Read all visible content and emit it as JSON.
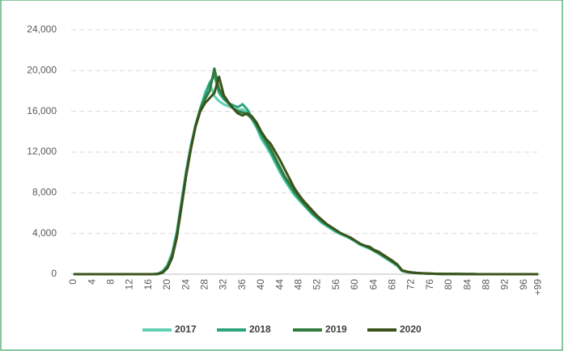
{
  "chart_data": {
    "type": "line",
    "categories": [
      "0",
      null,
      null,
      null,
      "4",
      null,
      null,
      null,
      "8",
      null,
      null,
      null,
      "12",
      null,
      null,
      null,
      "16",
      null,
      null,
      null,
      "20",
      null,
      null,
      null,
      "24",
      null,
      null,
      null,
      "28",
      null,
      null,
      null,
      "32",
      null,
      null,
      null,
      "36",
      null,
      null,
      null,
      "40",
      null,
      null,
      null,
      "44",
      null,
      null,
      null,
      "48",
      null,
      null,
      null,
      "52",
      null,
      null,
      null,
      "56",
      null,
      null,
      null,
      "60",
      null,
      null,
      null,
      "64",
      null,
      null,
      null,
      "68",
      null,
      null,
      null,
      "72",
      null,
      null,
      null,
      "76",
      null,
      null,
      null,
      "80",
      null,
      null,
      null,
      "84",
      null,
      null,
      null,
      "88",
      null,
      null,
      null,
      "92",
      null,
      null,
      null,
      "96",
      null,
      null,
      "+99"
    ],
    "series": [
      {
        "name": "2017",
        "color": "#5fd0b4",
        "values": [
          0,
          0,
          0,
          0,
          0,
          0,
          0,
          0,
          0,
          0,
          0,
          0,
          0,
          0,
          0,
          0,
          0,
          0,
          50,
          300,
          900,
          2100,
          4200,
          7200,
          10200,
          12700,
          14700,
          16300,
          17800,
          18800,
          17500,
          17000,
          16700,
          16500,
          16300,
          16100,
          16200,
          15900,
          15200,
          14400,
          13300,
          12600,
          11800,
          10900,
          10000,
          9200,
          8500,
          7800,
          7300,
          6800,
          6300,
          5800,
          5400,
          5000,
          4700,
          4400,
          4100,
          3900,
          3700,
          3500,
          3200,
          2900,
          2700,
          2500,
          2300,
          2000,
          1700,
          1400,
          1100,
          800,
          300,
          200,
          150,
          100,
          80,
          60,
          40,
          30,
          25,
          20,
          20,
          15,
          15,
          10,
          10,
          10,
          5,
          5,
          5,
          5,
          0,
          0,
          0,
          0,
          0,
          0,
          0,
          0,
          0,
          0
        ]
      },
      {
        "name": "2018",
        "color": "#2aa57c",
        "values": [
          0,
          0,
          0,
          0,
          0,
          0,
          0,
          0,
          0,
          0,
          0,
          0,
          0,
          0,
          0,
          0,
          0,
          0,
          40,
          250,
          800,
          1900,
          4000,
          7000,
          10000,
          12500,
          14600,
          16200,
          17500,
          18800,
          19500,
          17800,
          17200,
          16800,
          16600,
          16400,
          16700,
          16200,
          15400,
          14500,
          13600,
          12800,
          12000,
          11100,
          10200,
          9400,
          8700,
          8000,
          7400,
          6900,
          6400,
          5900,
          5500,
          5100,
          4800,
          4500,
          4200,
          4000,
          3800,
          3500,
          3300,
          3000,
          2800,
          2600,
          2300,
          2100,
          1800,
          1500,
          1200,
          900,
          350,
          220,
          160,
          110,
          90,
          70,
          50,
          35,
          30,
          25,
          20,
          15,
          15,
          10,
          10,
          10,
          5,
          5,
          5,
          5,
          0,
          0,
          0,
          0,
          0,
          0,
          0,
          0,
          0,
          0
        ]
      },
      {
        "name": "2019",
        "color": "#2f7a3c",
        "values": [
          0,
          0,
          0,
          0,
          0,
          0,
          0,
          0,
          0,
          0,
          0,
          0,
          0,
          0,
          0,
          0,
          0,
          0,
          30,
          200,
          700,
          1800,
          3800,
          6800,
          9800,
          12400,
          14600,
          16200,
          17200,
          18000,
          20200,
          18200,
          17400,
          16800,
          16300,
          16000,
          15900,
          15700,
          15300,
          14700,
          13900,
          13100,
          12300,
          11400,
          10500,
          9600,
          8900,
          8200,
          7600,
          7000,
          6500,
          6000,
          5600,
          5200,
          4900,
          4600,
          4300,
          4000,
          3800,
          3600,
          3300,
          3000,
          2800,
          2600,
          2300,
          2100,
          1800,
          1500,
          1200,
          900,
          350,
          230,
          170,
          120,
          90,
          70,
          50,
          35,
          30,
          25,
          20,
          15,
          15,
          10,
          10,
          10,
          5,
          5,
          5,
          5,
          0,
          0,
          0,
          0,
          0,
          0,
          0,
          0,
          0,
          0
        ]
      },
      {
        "name": "2020",
        "color": "#3b531b",
        "values": [
          0,
          0,
          0,
          0,
          0,
          0,
          0,
          0,
          0,
          0,
          0,
          0,
          0,
          0,
          0,
          0,
          0,
          0,
          20,
          150,
          600,
          1600,
          3600,
          6600,
          9700,
          12300,
          14500,
          16000,
          16800,
          17300,
          17800,
          19400,
          17600,
          16900,
          16300,
          15800,
          15600,
          15800,
          15500,
          14900,
          14000,
          13300,
          12800,
          12000,
          11200,
          10300,
          9400,
          8500,
          7800,
          7200,
          6700,
          6200,
          5700,
          5300,
          4900,
          4600,
          4300,
          4000,
          3800,
          3600,
          3300,
          3000,
          2800,
          2700,
          2400,
          2200,
          1900,
          1600,
          1300,
          950,
          380,
          250,
          180,
          130,
          100,
          80,
          60,
          40,
          30,
          25,
          20,
          15,
          15,
          10,
          10,
          10,
          5,
          5,
          5,
          5,
          0,
          0,
          0,
          0,
          0,
          0,
          0,
          0,
          0,
          0
        ]
      }
    ],
    "ylim": [
      0,
      24000
    ],
    "yticks": [
      0,
      {
        "value": 4000,
        "label": "4,000"
      },
      {
        "value": 8000,
        "label": "8,000"
      },
      {
        "value": 12000,
        "label": "12,000"
      },
      {
        "value": 16000,
        "label": "16,000"
      },
      {
        "value": 20000,
        "label": "20,000"
      },
      {
        "value": 24000,
        "label": "24,000"
      }
    ],
    "grid": true,
    "legend": "bottom"
  }
}
